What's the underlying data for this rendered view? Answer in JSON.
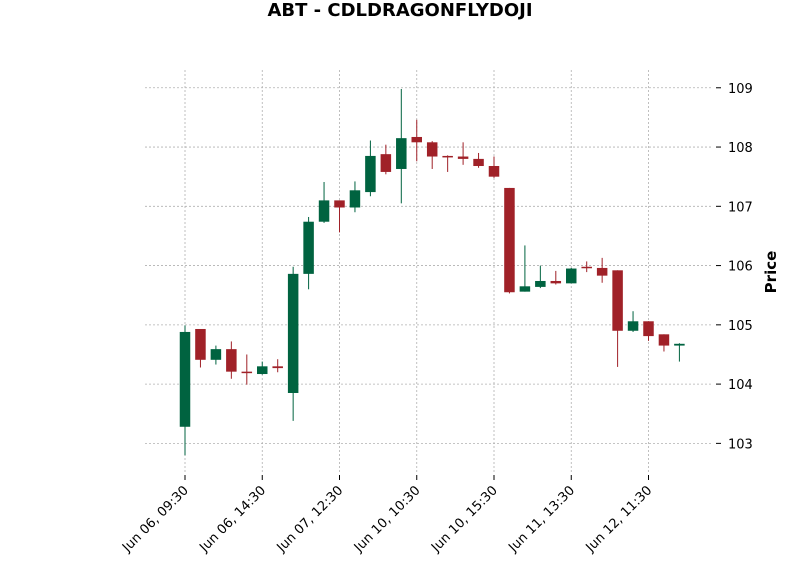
{
  "chart_data": {
    "type": "candlestick",
    "title": "ABT - CDLDRAGONFLYDOJI",
    "ylabel": "Price",
    "ylim": [
      102.5,
      109.3
    ],
    "y_ticks": [
      103,
      104,
      105,
      106,
      107,
      108,
      109
    ],
    "grid": true,
    "x_tick_labels": [
      {
        "index": 0,
        "label": "Jun 06, 09:30"
      },
      {
        "index": 5,
        "label": "Jun 06, 14:30"
      },
      {
        "index": 10,
        "label": "Jun 07, 12:30"
      },
      {
        "index": 15,
        "label": "Jun 10, 10:30"
      },
      {
        "index": 20,
        "label": "Jun 10, 15:30"
      },
      {
        "index": 25,
        "label": "Jun 11, 13:30"
      },
      {
        "index": 30,
        "label": "Jun 12, 11:30"
      }
    ],
    "colors": {
      "up": "#006340",
      "down": "#a02128",
      "grid": "#b0b0b0"
    },
    "candles": [
      {
        "open": 103.28,
        "high": 104.99,
        "low": 102.8,
        "close": 104.88
      },
      {
        "open": 104.93,
        "high": 104.93,
        "low": 104.28,
        "close": 104.41
      },
      {
        "open": 104.41,
        "high": 104.65,
        "low": 104.33,
        "close": 104.59
      },
      {
        "open": 104.59,
        "high": 104.72,
        "low": 104.09,
        "close": 104.21
      },
      {
        "open": 104.21,
        "high": 104.5,
        "low": 103.99,
        "close": 104.2
      },
      {
        "open": 104.17,
        "high": 104.38,
        "low": 104.16,
        "close": 104.3
      },
      {
        "open": 104.3,
        "high": 104.42,
        "low": 104.2,
        "close": 104.27
      },
      {
        "open": 103.85,
        "high": 105.98,
        "low": 103.38,
        "close": 105.86
      },
      {
        "open": 105.86,
        "high": 106.82,
        "low": 105.6,
        "close": 106.74
      },
      {
        "open": 106.74,
        "high": 107.41,
        "low": 106.72,
        "close": 107.1
      },
      {
        "open": 107.1,
        "high": 107.1,
        "low": 106.56,
        "close": 106.98
      },
      {
        "open": 106.98,
        "high": 107.42,
        "low": 106.9,
        "close": 107.27
      },
      {
        "open": 107.24,
        "high": 108.11,
        "low": 107.17,
        "close": 107.85
      },
      {
        "open": 107.88,
        "high": 108.04,
        "low": 107.54,
        "close": 107.58
      },
      {
        "open": 107.63,
        "high": 108.98,
        "low": 107.05,
        "close": 108.15
      },
      {
        "open": 108.17,
        "high": 108.46,
        "low": 107.76,
        "close": 108.08
      },
      {
        "open": 108.08,
        "high": 108.1,
        "low": 107.63,
        "close": 107.84
      },
      {
        "open": 107.85,
        "high": 107.86,
        "low": 107.58,
        "close": 107.84
      },
      {
        "open": 107.84,
        "high": 108.08,
        "low": 107.7,
        "close": 107.8
      },
      {
        "open": 107.8,
        "high": 107.9,
        "low": 107.65,
        "close": 107.68
      },
      {
        "open": 107.68,
        "high": 107.84,
        "low": 107.48,
        "close": 107.5
      },
      {
        "open": 107.31,
        "high": 107.31,
        "low": 105.53,
        "close": 105.55
      },
      {
        "open": 105.56,
        "high": 106.34,
        "low": 105.56,
        "close": 105.65
      },
      {
        "open": 105.64,
        "high": 106.0,
        "low": 105.62,
        "close": 105.74
      },
      {
        "open": 105.74,
        "high": 105.91,
        "low": 105.68,
        "close": 105.7
      },
      {
        "open": 105.7,
        "high": 105.96,
        "low": 105.7,
        "close": 105.95
      },
      {
        "open": 105.98,
        "high": 106.07,
        "low": 105.89,
        "close": 105.96
      },
      {
        "open": 105.96,
        "high": 106.13,
        "low": 105.71,
        "close": 105.83
      },
      {
        "open": 105.92,
        "high": 105.92,
        "low": 104.29,
        "close": 104.9
      },
      {
        "open": 104.9,
        "high": 105.23,
        "low": 104.88,
        "close": 105.06
      },
      {
        "open": 105.06,
        "high": 105.06,
        "low": 104.73,
        "close": 104.81
      },
      {
        "open": 104.84,
        "high": 104.84,
        "low": 104.55,
        "close": 104.65
      },
      {
        "open": 104.65,
        "high": 104.69,
        "low": 104.38,
        "close": 104.68
      }
    ]
  }
}
